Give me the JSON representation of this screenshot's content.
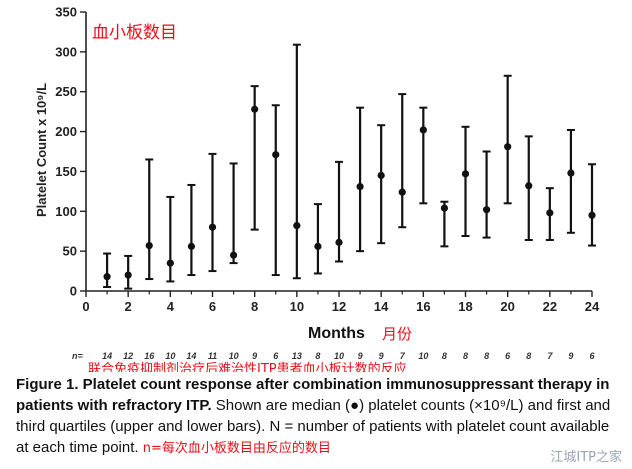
{
  "chart_data": {
    "type": "scatter",
    "title": "血小板数目",
    "subtitle": "联合免疫抑制剂治疗后难治性ITP患者血小板计数的反应",
    "ylabel": "Platelet Count x 10⁹/L",
    "xlabel": "Months",
    "xlabel_cn": "月份",
    "ylim": [
      0,
      350
    ],
    "xlim": [
      0,
      24
    ],
    "yticks": [
      0,
      50,
      100,
      150,
      200,
      250,
      300,
      350
    ],
    "xticks": [
      0,
      2,
      4,
      6,
      8,
      10,
      12,
      14,
      16,
      18,
      20,
      22,
      24
    ],
    "grid": false,
    "x": [
      1,
      2,
      3,
      4,
      5,
      6,
      7,
      8,
      9,
      10,
      11,
      12,
      13,
      14,
      15,
      16,
      17,
      18,
      19,
      20,
      21,
      22,
      23,
      24
    ],
    "median": [
      18,
      20,
      57,
      35,
      56,
      80,
      45,
      228,
      171,
      82,
      56,
      61,
      131,
      145,
      124,
      202,
      104,
      147,
      102,
      181,
      132,
      98,
      148,
      95
    ],
    "q1": [
      5,
      3,
      15,
      12,
      20,
      25,
      35,
      77,
      20,
      16,
      22,
      37,
      50,
      60,
      80,
      110,
      56,
      69,
      67,
      110,
      64,
      64,
      73,
      57
    ],
    "q3": [
      47,
      44,
      165,
      118,
      133,
      172,
      160,
      257,
      233,
      309,
      109,
      162,
      230,
      208,
      247,
      230,
      112,
      206,
      175,
      270,
      194,
      129,
      202,
      159
    ],
    "n_label": "n=",
    "n": [
      14,
      12,
      16,
      10,
      14,
      11,
      10,
      9,
      6,
      13,
      8,
      10,
      9,
      9,
      7,
      10,
      8,
      8,
      8,
      6,
      8,
      7,
      9,
      6
    ]
  },
  "caption": {
    "head": "Figure 1. Platelet count response after combination immunosuppressant therapy in patients with refractory ITP.",
    "body": " Shown are median (●) platelet counts (×10⁹/L) and first and third quartiles (upper and lower bars). N = number of patients with platelet count available at each time point.",
    "note_cn": "n=每次血小板数目由反应的数目"
  },
  "watermark": "江城ITP之家"
}
